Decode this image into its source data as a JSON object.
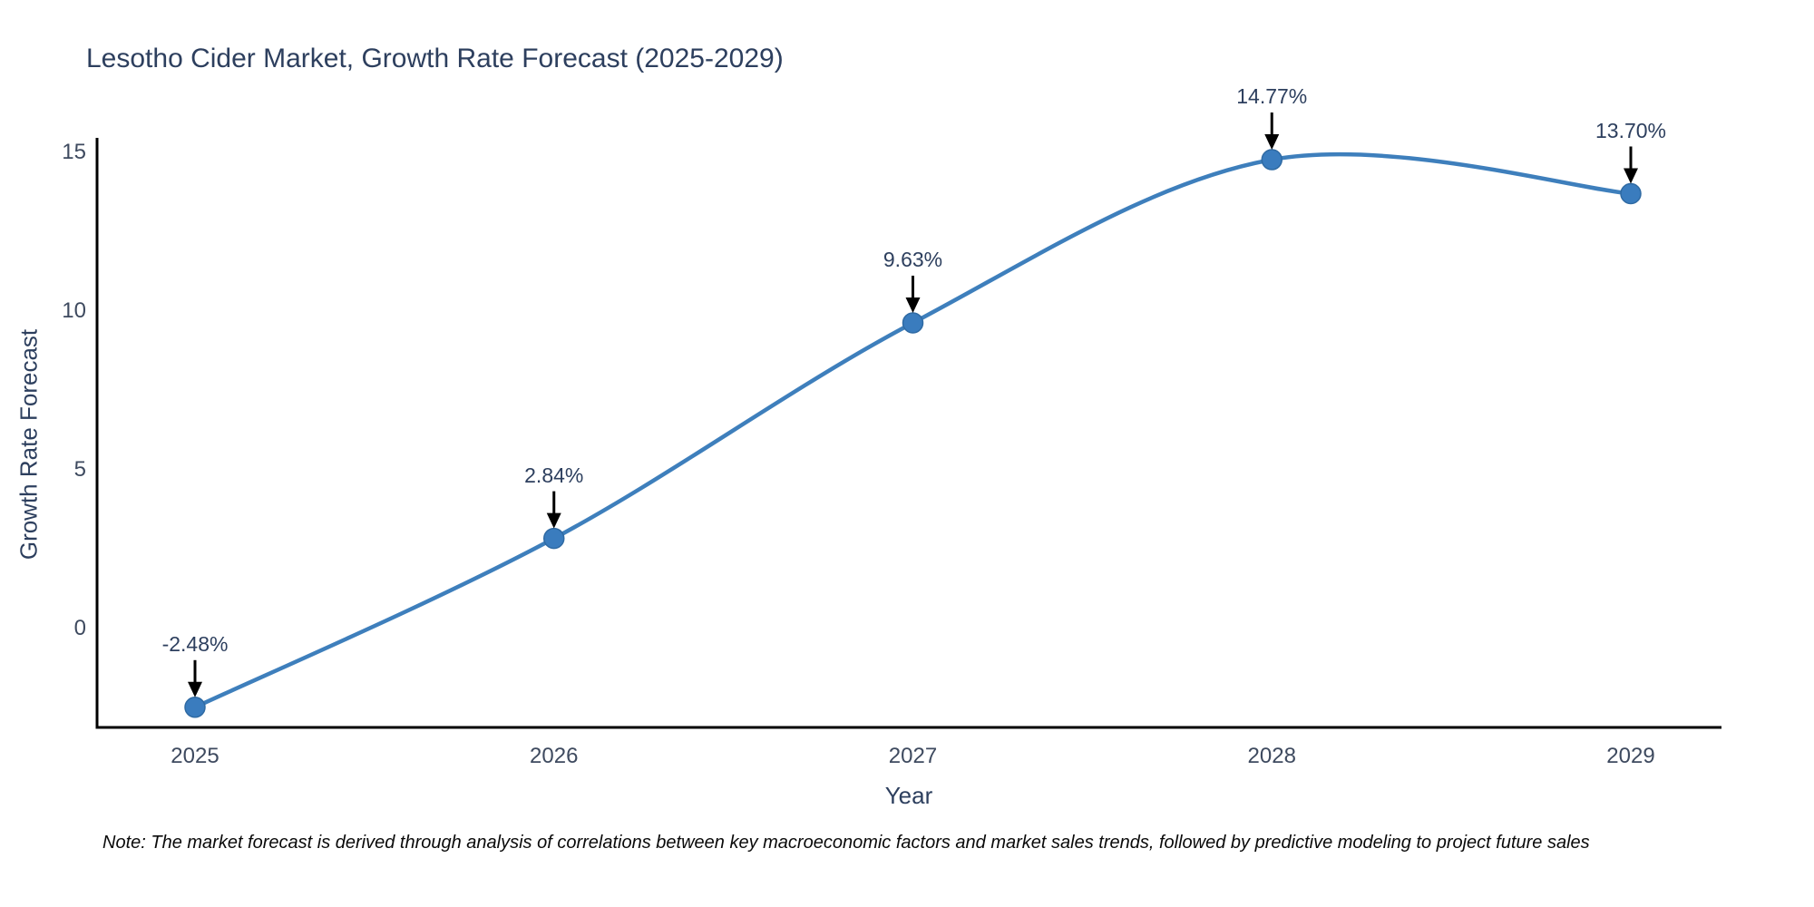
{
  "title": "Lesotho Cider Market, Growth Rate Forecast (2025-2029)",
  "note": "Note: The market forecast is derived through analysis of correlations between key macroeconomic factors and market sales trends, followed by predictive modeling to project future sales",
  "chart_data": {
    "type": "line",
    "title": "Lesotho Cider Market, Growth Rate Forecast (2025-2029)",
    "xlabel": "Year",
    "ylabel": "Growth Rate Forecast",
    "categories": [
      "2025",
      "2026",
      "2027",
      "2028",
      "2029"
    ],
    "values": [
      -2.48,
      2.84,
      9.63,
      14.77,
      13.7
    ],
    "point_labels": [
      "-2.48%",
      "2.84%",
      "9.63%",
      "14.77%",
      "13.70%"
    ],
    "yticks": [
      0,
      5,
      10,
      15
    ],
    "ylim": [
      -3.1,
      15.5
    ],
    "line_shape": "spline",
    "grid": false,
    "legend": "none",
    "line_color": "#3e7fbc",
    "marker_color": "#3a7cbe",
    "marker_edge_color": "#2f6aa3",
    "annotation_arrow_color": "#000000",
    "axis_color": "#000000",
    "text_color": "#2d3f5e"
  }
}
